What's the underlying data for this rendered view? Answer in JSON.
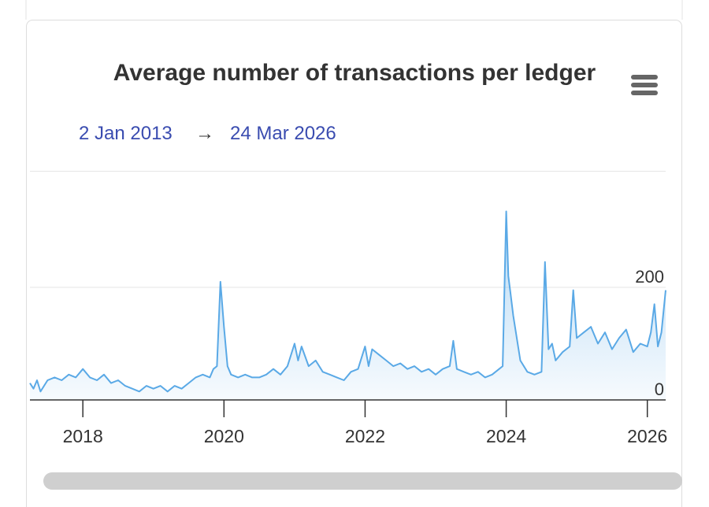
{
  "chart_data": {
    "type": "area-line",
    "title": "Average number of transactions per ledger",
    "range_start": "2 Jan 2013",
    "range_arrow": "→",
    "range_end": "24 Mar 2026",
    "x": [
      2017.25,
      2017.3,
      2017.35,
      2017.4,
      2017.5,
      2017.6,
      2017.7,
      2017.8,
      2017.9,
      2018.0,
      2018.1,
      2018.2,
      2018.3,
      2018.4,
      2018.5,
      2018.6,
      2018.7,
      2018.8,
      2018.9,
      2019.0,
      2019.1,
      2019.2,
      2019.3,
      2019.4,
      2019.5,
      2019.6,
      2019.7,
      2019.8,
      2019.85,
      2019.9,
      2019.95,
      2020.0,
      2020.05,
      2020.1,
      2020.2,
      2020.3,
      2020.4,
      2020.5,
      2020.6,
      2020.7,
      2020.8,
      2020.9,
      2021.0,
      2021.05,
      2021.1,
      2021.2,
      2021.3,
      2021.4,
      2021.5,
      2021.6,
      2021.7,
      2021.8,
      2021.9,
      2022.0,
      2022.05,
      2022.1,
      2022.2,
      2022.3,
      2022.4,
      2022.5,
      2022.6,
      2022.7,
      2022.8,
      2022.9,
      2023.0,
      2023.1,
      2023.2,
      2023.25,
      2023.3,
      2023.4,
      2023.5,
      2023.6,
      2023.7,
      2023.8,
      2023.9,
      2023.95,
      2024.0,
      2024.03,
      2024.06,
      2024.1,
      2024.15,
      2024.2,
      2024.3,
      2024.4,
      2024.5,
      2024.55,
      2024.6,
      2024.65,
      2024.7,
      2024.8,
      2024.9,
      2024.95,
      2025.0,
      2025.1,
      2025.2,
      2025.3,
      2025.4,
      2025.5,
      2025.6,
      2025.7,
      2025.8,
      2025.9,
      2026.0,
      2026.05,
      2026.1,
      2026.15,
      2026.2,
      2026.26
    ],
    "series": [
      {
        "color": "#5aa9e6",
        "values": [
          30,
          20,
          35,
          15,
          35,
          40,
          35,
          45,
          40,
          55,
          40,
          35,
          45,
          30,
          35,
          25,
          20,
          15,
          25,
          20,
          25,
          15,
          25,
          20,
          30,
          40,
          45,
          40,
          55,
          60,
          210,
          130,
          60,
          45,
          40,
          45,
          40,
          40,
          45,
          55,
          45,
          60,
          100,
          70,
          95,
          60,
          70,
          50,
          45,
          40,
          35,
          50,
          55,
          95,
          60,
          90,
          80,
          70,
          60,
          65,
          55,
          60,
          50,
          55,
          45,
          55,
          60,
          105,
          55,
          50,
          45,
          50,
          40,
          45,
          55,
          60,
          335,
          220,
          190,
          150,
          110,
          70,
          50,
          45,
          50,
          245,
          90,
          100,
          70,
          85,
          95,
          195,
          110,
          120,
          130,
          100,
          120,
          90,
          110,
          125,
          85,
          100,
          95,
          120,
          170,
          95,
          120,
          195
        ]
      }
    ],
    "xlim": [
      2017.25,
      2026.26
    ],
    "xticks": [
      2018,
      2020,
      2022,
      2024,
      2026
    ],
    "ylim": [
      0,
      400
    ],
    "yticks": [
      0,
      200
    ],
    "grid": true
  }
}
